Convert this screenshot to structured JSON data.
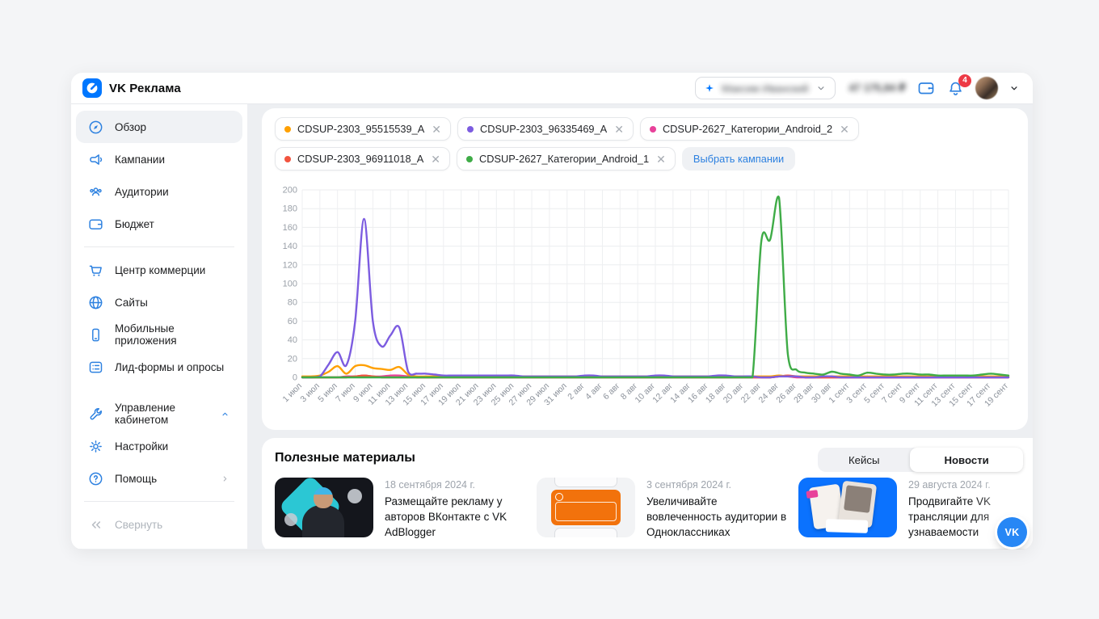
{
  "header": {
    "brand": "VK Реклама",
    "account_name_blurred": "Максим Иванский",
    "balance_blurred": "47 175,84 ₽",
    "notifications_count": "4"
  },
  "sidebar": {
    "main": [
      {
        "id": "overview",
        "label": "Обзор",
        "icon": "compass",
        "active": true
      },
      {
        "id": "campaigns",
        "label": "Кампании",
        "icon": "megaphone",
        "active": false
      },
      {
        "id": "audiences",
        "label": "Аудитории",
        "icon": "users",
        "active": false
      },
      {
        "id": "budget",
        "label": "Бюджет",
        "icon": "wallet",
        "active": false
      }
    ],
    "tools": [
      {
        "id": "commerce",
        "label": "Центр коммерции",
        "icon": "cart",
        "active": false
      },
      {
        "id": "sites",
        "label": "Сайты",
        "icon": "globe",
        "active": false
      },
      {
        "id": "mobile-apps",
        "label": "Мобильные приложения",
        "icon": "phone",
        "active": false
      },
      {
        "id": "lead-forms",
        "label": "Лид-формы и опросы",
        "icon": "form",
        "active": false
      }
    ],
    "management": [
      {
        "id": "cabinet",
        "label": "Управление кабинетом",
        "icon": "wrench",
        "trailing": "chevron-up",
        "trail_color": "blue"
      },
      {
        "id": "settings",
        "label": "Настройки",
        "icon": "gear",
        "trailing": "",
        "trail_color": ""
      },
      {
        "id": "help",
        "label": "Помощь",
        "icon": "question",
        "trailing": "chevron-right",
        "trail_color": "gray"
      }
    ],
    "collapse_label": "Свернуть"
  },
  "filters": {
    "chips": [
      {
        "label": "CDSUP-2303_95515539_A",
        "color": "#FFA000"
      },
      {
        "label": "CDSUP-2303_96335469_A",
        "color": "#7C5CE0"
      },
      {
        "label": "CDSUP-2627_Категории_Android_2",
        "color": "#E8429A"
      },
      {
        "label": "CDSUP-2303_96911018_A",
        "color": "#F2543F"
      },
      {
        "label": "CDSUP-2627_Категории_Android_1",
        "color": "#3FAC47"
      }
    ],
    "select_campaigns_label": "Выбрать кампании"
  },
  "chart_data": {
    "type": "line",
    "ylim": [
      0,
      200
    ],
    "ytick_step": 20,
    "grid": true,
    "x_labels": [
      "1 июл",
      "3 июл",
      "5 июл",
      "7 июл",
      "9 июл",
      "11 июл",
      "13 июл",
      "15 июл",
      "17 июл",
      "19 июл",
      "21 июл",
      "23 июл",
      "25 июл",
      "27 июл",
      "29 июл",
      "31 июл",
      "2 авг",
      "4 авг",
      "6 авг",
      "8 авг",
      "10 авг",
      "12 авг",
      "14 авг",
      "16 авг",
      "18 авг",
      "20 авг",
      "22 авг",
      "24 авг",
      "26 авг",
      "28 авг",
      "30 авг",
      "1 сент",
      "3 сент",
      "5 сент",
      "7 сент",
      "9 сент",
      "11 сент",
      "13 сент",
      "15 сент",
      "17 сент",
      "19 сент"
    ],
    "points_per_label": 2,
    "series": [
      {
        "name": "CDSUP-2627_Категории_Android_2",
        "color": "#E8429A",
        "values": [
          0,
          0,
          0,
          0,
          0,
          1,
          1,
          2,
          1,
          1,
          2,
          2,
          1,
          0,
          0,
          0,
          0,
          0,
          0,
          0,
          0,
          0,
          0,
          0,
          0,
          0,
          0,
          0,
          0,
          0,
          0,
          0,
          0,
          0,
          0,
          0,
          0,
          0,
          0,
          0,
          0,
          0,
          0,
          0,
          0,
          0,
          0,
          0,
          0,
          0,
          0,
          0,
          0,
          0,
          1,
          1,
          0,
          0,
          0,
          0,
          0,
          0,
          0,
          0,
          0,
          0,
          0,
          0,
          0,
          0,
          0,
          0,
          0,
          0,
          0,
          0,
          0,
          0,
          0,
          0,
          0
        ]
      },
      {
        "name": "CDSUP-2303_96911018_A",
        "color": "#F2543F",
        "values": [
          0,
          0,
          0,
          0,
          0,
          0,
          1,
          2,
          1,
          0,
          0,
          0,
          0,
          0,
          0,
          0,
          0,
          0,
          0,
          0,
          0,
          0,
          0,
          0,
          0,
          0,
          0,
          0,
          0,
          0,
          0,
          0,
          0,
          0,
          0,
          0,
          0,
          0,
          0,
          0,
          0,
          0,
          0,
          0,
          0,
          0,
          0,
          0,
          0,
          0,
          0,
          0,
          0,
          0,
          1,
          2,
          1,
          0,
          0,
          0,
          0,
          0,
          0,
          0,
          0,
          0,
          0,
          0,
          0,
          0,
          0,
          0,
          0,
          0,
          0,
          0,
          0,
          0,
          0,
          0,
          0
        ]
      },
      {
        "name": "CDSUP-2303_95515539_A",
        "color": "#FFA000",
        "values": [
          1,
          1,
          2,
          6,
          12,
          4,
          12,
          13,
          10,
          9,
          8,
          11,
          3,
          1,
          1,
          1,
          1,
          1,
          1,
          1,
          1,
          1,
          1,
          1,
          1,
          1,
          1,
          1,
          1,
          1,
          1,
          1,
          1,
          1,
          1,
          1,
          1,
          1,
          1,
          1,
          1,
          1,
          1,
          1,
          1,
          1,
          1,
          1,
          1,
          1,
          1,
          1,
          1,
          1,
          2,
          1,
          1,
          1,
          1,
          1,
          1,
          1,
          1,
          1,
          1,
          1,
          1,
          1,
          1,
          1,
          1,
          1,
          1,
          1,
          1,
          1,
          1,
          1,
          1,
          1,
          1
        ]
      },
      {
        "name": "CDSUP-2303_96335469_A",
        "color": "#7C5CE0",
        "values": [
          0,
          0,
          1,
          14,
          27,
          13,
          60,
          169,
          60,
          33,
          45,
          53,
          6,
          4,
          4,
          3,
          2,
          2,
          2,
          2,
          2,
          2,
          2,
          2,
          2,
          1,
          1,
          1,
          1,
          1,
          1,
          1,
          2,
          2,
          1,
          1,
          1,
          1,
          1,
          1,
          2,
          2,
          1,
          1,
          1,
          1,
          1,
          2,
          2,
          1,
          1,
          1,
          0,
          0,
          1,
          1,
          1,
          0,
          0,
          1,
          1,
          0,
          0,
          0,
          0,
          0,
          0,
          0,
          0,
          0,
          0,
          0,
          0,
          0,
          0,
          0,
          0,
          0,
          0,
          0,
          0
        ]
      },
      {
        "name": "CDSUP-2627_Категории_Android_1",
        "color": "#3FAC47",
        "values": [
          0,
          0,
          0,
          0,
          0,
          0,
          0,
          0,
          0,
          0,
          0,
          0,
          0,
          0,
          0,
          0,
          0,
          0,
          0,
          0,
          0,
          0,
          0,
          0,
          0,
          0,
          0,
          0,
          0,
          0,
          0,
          0,
          0,
          0,
          0,
          0,
          0,
          0,
          0,
          0,
          0,
          0,
          0,
          0,
          0,
          0,
          0,
          0,
          0,
          0,
          0,
          0,
          145,
          147,
          192,
          25,
          8,
          5,
          4,
          3,
          6,
          4,
          3,
          2,
          5,
          4,
          3,
          3,
          4,
          4,
          3,
          3,
          2,
          2,
          2,
          2,
          2,
          3,
          4,
          3,
          2
        ]
      }
    ]
  },
  "materials": {
    "title": "Полезные материалы",
    "tabs": [
      {
        "label": "Кейсы",
        "active": false
      },
      {
        "label": "Новости",
        "active": true
      }
    ],
    "cards": [
      {
        "date": "18 сентября 2024 г.",
        "title": "Размещайте рекламу у авторов ВКонтакте с VK AdBlogger",
        "thumb": "adblogger"
      },
      {
        "date": "3 сентября 2024 г.",
        "title": "Увеличивайте вовлеченность аудитории в Одноклассниках",
        "thumb": "ok"
      },
      {
        "date": "29 августа 2024 г.",
        "title": "Продвигайте VK трансляции для узнаваемости",
        "thumb": "live"
      }
    ]
  },
  "fab_label": "VK"
}
